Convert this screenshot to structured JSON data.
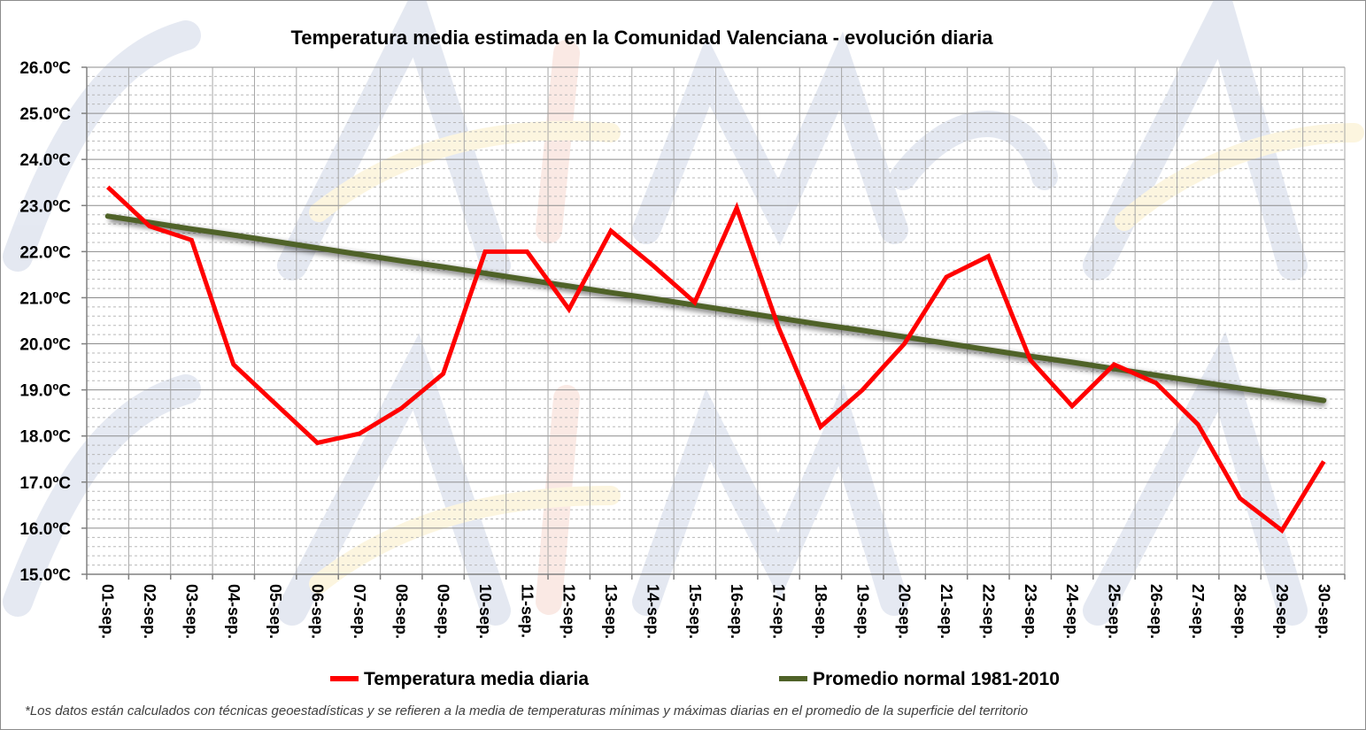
{
  "chart_data": {
    "type": "line",
    "title": "Temperatura media estimada en la Comunidad Valenciana - evolución diaria",
    "categories": [
      "01-sep.",
      "02-sep.",
      "03-sep.",
      "04-sep.",
      "05-sep.",
      "06-sep.",
      "07-sep.",
      "08-sep.",
      "09-sep.",
      "10-sep.",
      "11-sep.",
      "12-sep.",
      "13-sep.",
      "14-sep.",
      "15-sep.",
      "16-sep.",
      "17-sep.",
      "18-sep.",
      "19-sep.",
      "20-sep.",
      "21-sep.",
      "22-sep.",
      "23-sep.",
      "24-sep.",
      "25-sep.",
      "26-sep.",
      "27-sep.",
      "28-sep.",
      "29-sep.",
      "30-sep."
    ],
    "yticks": [
      "15.0ºC",
      "16.0ºC",
      "17.0ºC",
      "18.0ºC",
      "19.0ºC",
      "20.0ºC",
      "21.0ºC",
      "22.0ºC",
      "23.0ºC",
      "24.0ºC",
      "25.0ºC",
      "26.0ºC"
    ],
    "ylim": [
      15,
      26
    ],
    "series": [
      {
        "name": "Temperatura media diaria",
        "color": "#ff0000",
        "values": [
          23.4,
          22.55,
          22.25,
          19.55,
          18.7,
          17.85,
          18.05,
          18.6,
          19.35,
          22.0,
          22.0,
          20.75,
          22.45,
          21.7,
          20.9,
          22.95,
          20.35,
          18.2,
          19.0,
          20.0,
          21.45,
          21.9,
          19.65,
          18.65,
          19.55,
          19.15,
          18.25,
          16.65,
          15.95,
          17.45
        ]
      },
      {
        "name": "Promedio normal 1981-2010",
        "color": "#4f6228",
        "values": [
          22.77,
          22.63,
          22.49,
          22.36,
          22.22,
          22.08,
          21.94,
          21.8,
          21.67,
          21.53,
          21.39,
          21.25,
          21.11,
          20.98,
          20.84,
          20.7,
          20.56,
          20.42,
          20.29,
          20.15,
          20.01,
          19.87,
          19.73,
          19.6,
          19.46,
          19.32,
          19.18,
          19.04,
          18.91,
          18.77
        ]
      }
    ],
    "grid": true,
    "legend_position": "bottom"
  },
  "footnote": "*Los datos están calculados con técnicas geoestadísticas y se refieren a la media de temperaturas mínimas y máximas diarias en el promedio de la superficie del territorio"
}
